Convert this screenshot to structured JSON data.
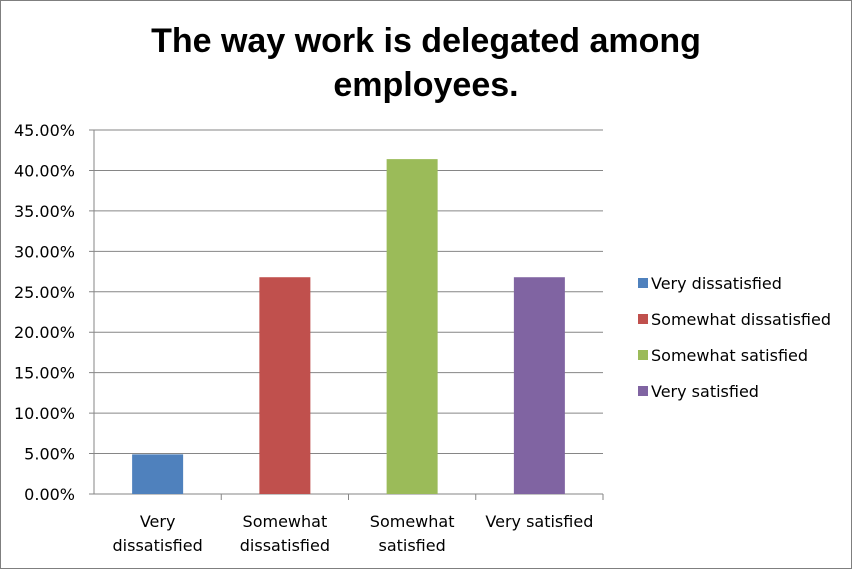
{
  "chart_data": {
    "type": "bar",
    "title": "The way work is delegated among employees.",
    "categories": [
      [
        "Very",
        "dissatisfied"
      ],
      [
        "Somewhat",
        "dissatisfied"
      ],
      [
        "Somewhat",
        "satisfied"
      ],
      [
        "Very satisfied"
      ]
    ],
    "series": [
      {
        "name": "Very dissatisfied",
        "color": "#4f81bd"
      },
      {
        "name": "Somewhat dissatisfied",
        "color": "#c0504d"
      },
      {
        "name": "Somewhat satisfied",
        "color": "#9bbb59"
      },
      {
        "name": "Very satisfied",
        "color": "#8064a2"
      }
    ],
    "values": [
      0.049,
      0.268,
      0.414,
      0.268
    ],
    "y_ticks": [
      "0.00%",
      "5.00%",
      "10.00%",
      "15.00%",
      "20.00%",
      "25.00%",
      "30.00%",
      "35.00%",
      "40.00%",
      "45.00%"
    ],
    "ylim": [
      0,
      0.45
    ],
    "grid": true,
    "legend_position": "right"
  }
}
